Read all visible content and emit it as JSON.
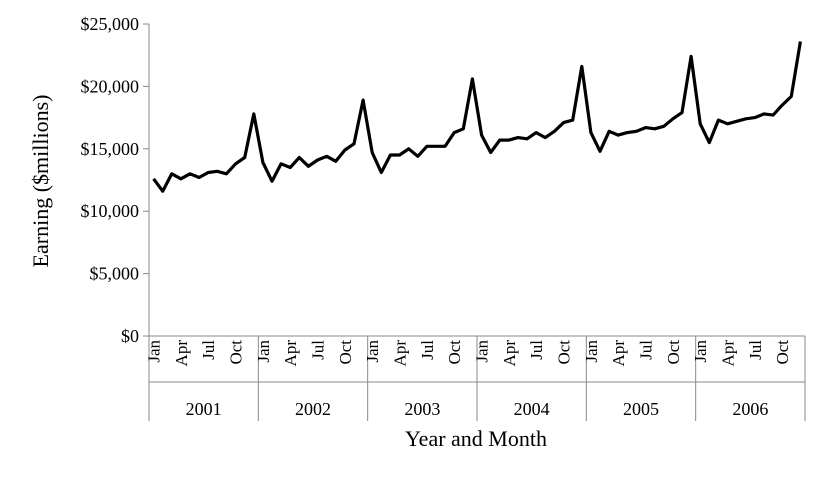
{
  "chart_data": {
    "type": "line",
    "title": "",
    "ylabel": "Earning ($millions)",
    "xlabel": "Year and Month",
    "ylim": [
      0,
      25000
    ],
    "y_ticks": [
      0,
      5000,
      10000,
      15000,
      20000,
      25000
    ],
    "y_tick_labels": [
      "$0",
      "$5,000",
      "$10,000",
      "$15,000",
      "$20,000",
      "$25,000"
    ],
    "years": [
      "2001",
      "2002",
      "2003",
      "2004",
      "2005",
      "2006"
    ],
    "month_tick_labels": [
      "Jan",
      "Apr",
      "Jul",
      "Oct"
    ],
    "month_tick_indices": [
      0,
      3,
      6,
      9
    ],
    "line_color": "#000000",
    "grid": false,
    "series": [
      {
        "values": [
          12600,
          11600,
          13000,
          12600,
          13000,
          12700,
          13100,
          13200,
          13000,
          13800,
          14300,
          17800,
          13900,
          12400,
          13800,
          13500,
          14300,
          13600,
          14100,
          14400,
          14000,
          14900,
          15400,
          18900,
          14700,
          13100,
          14500,
          14500,
          15000,
          14400,
          15200,
          15200,
          15200,
          16300,
          16600,
          20600,
          16100,
          14700,
          15700,
          15700,
          15900,
          15800,
          16300,
          15900,
          16400,
          17100,
          17300,
          21600,
          16300,
          14800,
          16400,
          16100,
          16300,
          16400,
          16700,
          16600,
          16800,
          17400,
          17900,
          22400,
          17000,
          15500,
          17300,
          17000,
          17200,
          17400,
          17500,
          17800,
          17700,
          18500,
          19200,
          23600
        ]
      }
    ]
  }
}
